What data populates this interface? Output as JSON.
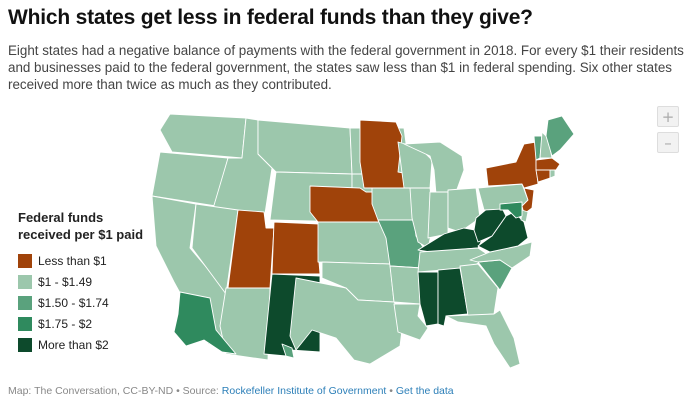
{
  "title": "Which states get less in federal funds than they give?",
  "subtitle": "Eight states had a negative balance of payments with the federal government in 2018. For every $1 their residents and businesses paid to the federal government, the states saw less than $1 in federal spending. Six other states received more than twice as much as they contributed.",
  "controls": {
    "zoom_in": "+",
    "zoom_out": "–"
  },
  "legend": {
    "title": "Federal funds received per $1 paid",
    "items": [
      {
        "label": "Less than $1",
        "color": "#a0430a"
      },
      {
        "label": "$1 - $1.49",
        "color": "#9cc7ac"
      },
      {
        "label": "$1.50 - $1.74",
        "color": "#5aa27d"
      },
      {
        "label": "$1.75 - $2",
        "color": "#2f8a5e"
      },
      {
        "label": "More than $2",
        "color": "#0d4a2c"
      }
    ]
  },
  "footer": {
    "prefix": "Map: The Conversation, CC-BY-ND • Source: ",
    "source": "Rockefeller Institute of Government",
    "separator": " • ",
    "get_data": "Get the data"
  },
  "states": [
    {
      "id": "WA",
      "cat": 1
    },
    {
      "id": "OR",
      "cat": 1
    },
    {
      "id": "CA",
      "cat": 1
    },
    {
      "id": "ID",
      "cat": 1
    },
    {
      "id": "NV",
      "cat": 1
    },
    {
      "id": "MT",
      "cat": 1
    },
    {
      "id": "WY",
      "cat": 1
    },
    {
      "id": "UT",
      "cat": 0
    },
    {
      "id": "AZ",
      "cat": 1
    },
    {
      "id": "CO",
      "cat": 0
    },
    {
      "id": "NM",
      "cat": 4
    },
    {
      "id": "ND",
      "cat": 1
    },
    {
      "id": "SD",
      "cat": 1
    },
    {
      "id": "NE",
      "cat": 0
    },
    {
      "id": "KS",
      "cat": 1
    },
    {
      "id": "OK",
      "cat": 1
    },
    {
      "id": "TX",
      "cat": 1
    },
    {
      "id": "MN",
      "cat": 0
    },
    {
      "id": "IA",
      "cat": 1
    },
    {
      "id": "MO",
      "cat": 2
    },
    {
      "id": "AR",
      "cat": 1
    },
    {
      "id": "LA",
      "cat": 1
    },
    {
      "id": "WI",
      "cat": 1
    },
    {
      "id": "IL",
      "cat": 1
    },
    {
      "id": "MI",
      "cat": 1
    },
    {
      "id": "IN",
      "cat": 1
    },
    {
      "id": "OH",
      "cat": 1
    },
    {
      "id": "KY",
      "cat": 4
    },
    {
      "id": "TN",
      "cat": 1
    },
    {
      "id": "MS",
      "cat": 4
    },
    {
      "id": "AL",
      "cat": 4
    },
    {
      "id": "GA",
      "cat": 1
    },
    {
      "id": "FL",
      "cat": 1
    },
    {
      "id": "SC",
      "cat": 2
    },
    {
      "id": "NC",
      "cat": 1
    },
    {
      "id": "VA",
      "cat": 4
    },
    {
      "id": "WV",
      "cat": 4
    },
    {
      "id": "PA",
      "cat": 1
    },
    {
      "id": "NY",
      "cat": 0
    },
    {
      "id": "NJ",
      "cat": 0
    },
    {
      "id": "DE",
      "cat": 1
    },
    {
      "id": "MD",
      "cat": 3
    },
    {
      "id": "CT",
      "cat": 0
    },
    {
      "id": "RI",
      "cat": 1
    },
    {
      "id": "MA",
      "cat": 0
    },
    {
      "id": "VT",
      "cat": 2
    },
    {
      "id": "NH",
      "cat": 1
    },
    {
      "id": "ME",
      "cat": 2
    },
    {
      "id": "AK",
      "cat": 3
    },
    {
      "id": "HI",
      "cat": 2
    }
  ]
}
